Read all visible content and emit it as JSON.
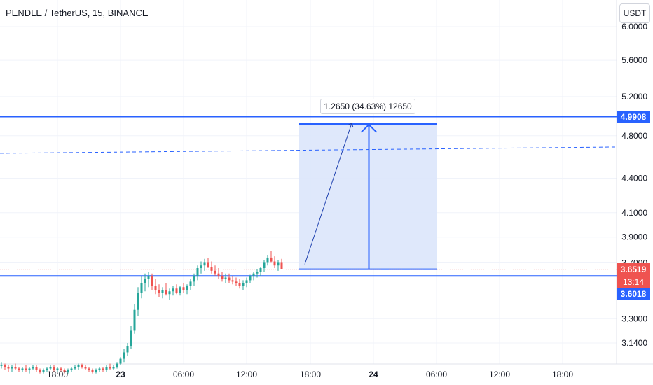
{
  "header": {
    "symbol": "PENDLE / TetherUS, 15, BINANCE",
    "currency": "USDT"
  },
  "price_axis": {
    "labels": [
      "6.0000",
      "5.6000",
      "5.2000",
      "4.8000",
      "4.4000",
      "4.1000",
      "3.9000",
      "3.7000",
      "3.3000",
      "3.1400"
    ]
  },
  "tags": {
    "level_top": "4.9908",
    "last_price": "3.6519",
    "countdown": "13:14",
    "level_bottom": "3.6018"
  },
  "measure": {
    "label": "1.2650 (34.63%) 12650"
  },
  "colors": {
    "up": "#26a69a",
    "down": "#ef5350",
    "line": "#2962ff",
    "measure_fill": "#dbe5fb"
  },
  "chart_data": {
    "type": "candlestick",
    "x_labels": [
      "18:00",
      "23",
      "06:00",
      "12:00",
      "18:00",
      "24",
      "06:00",
      "12:00",
      "18:00"
    ],
    "y_scale": "log",
    "ylim": [
      3.0,
      6.0
    ],
    "horizontal_levels": [
      4.9908,
      3.6018
    ],
    "last_price": 3.6519,
    "trend_line": {
      "start": 4.63,
      "end": 4.69,
      "style": "dashed"
    },
    "measure": {
      "from": 3.6518,
      "to": 4.917,
      "change": 1.265,
      "change_pct": 34.63,
      "ticks": 12650
    },
    "series": [
      {
        "values": [
          [
            3.0,
            3.02,
            2.98,
            3.0
          ],
          [
            3.0,
            3.01,
            2.97,
            2.99
          ],
          [
            2.99,
            3.0,
            2.96,
            2.98
          ],
          [
            2.98,
            3.0,
            2.96,
            2.99
          ],
          [
            2.99,
            3.01,
            2.97,
            2.98
          ],
          [
            2.98,
            2.99,
            2.96,
            2.97
          ],
          [
            2.97,
            2.99,
            2.96,
            2.98
          ],
          [
            2.98,
            3.0,
            2.96,
            2.97
          ],
          [
            2.97,
            2.99,
            2.95,
            2.98
          ],
          [
            2.98,
            3.0,
            2.97,
            2.99
          ],
          [
            2.99,
            3.0,
            2.96,
            2.97
          ],
          [
            2.97,
            2.98,
            2.95,
            2.96
          ],
          [
            2.96,
            2.98,
            2.95,
            2.97
          ],
          [
            2.97,
            2.99,
            2.96,
            2.98
          ],
          [
            2.98,
            3.0,
            2.97,
            2.99
          ],
          [
            2.99,
            3.0,
            2.96,
            2.97
          ],
          [
            2.97,
            2.99,
            2.96,
            2.98
          ],
          [
            2.98,
            2.99,
            2.96,
            2.97
          ],
          [
            2.97,
            2.98,
            2.95,
            2.96
          ],
          [
            2.96,
            2.98,
            2.95,
            2.97
          ],
          [
            2.97,
            2.99,
            2.96,
            2.98
          ],
          [
            2.98,
            3.0,
            2.97,
            2.99
          ],
          [
            2.99,
            3.01,
            2.97,
            3.0
          ],
          [
            3.0,
            3.01,
            2.98,
            2.99
          ],
          [
            2.99,
            3.0,
            2.97,
            2.98
          ],
          [
            2.98,
            2.99,
            2.96,
            2.97
          ],
          [
            2.97,
            2.98,
            2.95,
            2.96
          ],
          [
            2.96,
            2.98,
            2.95,
            2.97
          ],
          [
            2.97,
            2.99,
            2.96,
            2.98
          ],
          [
            2.98,
            2.99,
            2.96,
            2.97
          ],
          [
            2.97,
            3.0,
            2.96,
            2.99
          ],
          [
            2.99,
            3.01,
            2.97,
            2.98
          ],
          [
            2.98,
            3.0,
            2.97,
            2.99
          ],
          [
            2.99,
            3.02,
            2.98,
            3.01
          ],
          [
            3.01,
            3.05,
            3.0,
            3.04
          ],
          [
            3.04,
            3.1,
            3.02,
            3.08
          ],
          [
            3.08,
            3.14,
            3.06,
            3.12
          ],
          [
            3.12,
            3.25,
            3.1,
            3.22
          ],
          [
            3.22,
            3.4,
            3.2,
            3.36
          ],
          [
            3.36,
            3.52,
            3.32,
            3.48
          ],
          [
            3.48,
            3.6,
            3.44,
            3.55
          ],
          [
            3.55,
            3.62,
            3.49,
            3.58
          ],
          [
            3.58,
            3.63,
            3.52,
            3.6
          ],
          [
            3.6,
            3.62,
            3.5,
            3.53
          ],
          [
            3.53,
            3.58,
            3.47,
            3.5
          ],
          [
            3.5,
            3.54,
            3.45,
            3.48
          ],
          [
            3.48,
            3.52,
            3.44,
            3.5
          ],
          [
            3.5,
            3.55,
            3.46,
            3.47
          ],
          [
            3.47,
            3.51,
            3.43,
            3.49
          ],
          [
            3.49,
            3.53,
            3.46,
            3.51
          ],
          [
            3.51,
            3.54,
            3.47,
            3.48
          ],
          [
            3.48,
            3.53,
            3.46,
            3.52
          ],
          [
            3.52,
            3.55,
            3.48,
            3.5
          ],
          [
            3.5,
            3.54,
            3.47,
            3.53
          ],
          [
            3.53,
            3.58,
            3.5,
            3.56
          ],
          [
            3.56,
            3.62,
            3.53,
            3.6
          ],
          [
            3.6,
            3.68,
            3.57,
            3.66
          ],
          [
            3.66,
            3.71,
            3.62,
            3.68
          ],
          [
            3.68,
            3.73,
            3.64,
            3.7
          ],
          [
            3.7,
            3.74,
            3.66,
            3.67
          ],
          [
            3.67,
            3.71,
            3.62,
            3.64
          ],
          [
            3.64,
            3.68,
            3.6,
            3.62
          ],
          [
            3.62,
            3.66,
            3.58,
            3.6
          ],
          [
            3.6,
            3.63,
            3.56,
            3.58
          ],
          [
            3.58,
            3.62,
            3.55,
            3.59
          ],
          [
            3.59,
            3.62,
            3.55,
            3.57
          ],
          [
            3.57,
            3.6,
            3.54,
            3.56
          ],
          [
            3.56,
            3.59,
            3.53,
            3.55
          ],
          [
            3.55,
            3.58,
            3.51,
            3.53
          ],
          [
            3.53,
            3.57,
            3.5,
            3.55
          ],
          [
            3.55,
            3.59,
            3.52,
            3.57
          ],
          [
            3.57,
            3.61,
            3.55,
            3.6
          ],
          [
            3.6,
            3.63,
            3.57,
            3.62
          ],
          [
            3.62,
            3.65,
            3.59,
            3.63
          ],
          [
            3.63,
            3.67,
            3.6,
            3.66
          ],
          [
            3.66,
            3.72,
            3.63,
            3.7
          ],
          [
            3.7,
            3.76,
            3.68,
            3.74
          ],
          [
            3.74,
            3.79,
            3.7,
            3.71
          ],
          [
            3.71,
            3.75,
            3.66,
            3.68
          ],
          [
            3.68,
            3.72,
            3.64,
            3.7
          ],
          [
            3.7,
            3.73,
            3.66,
            3.6519
          ]
        ]
      }
    ]
  }
}
